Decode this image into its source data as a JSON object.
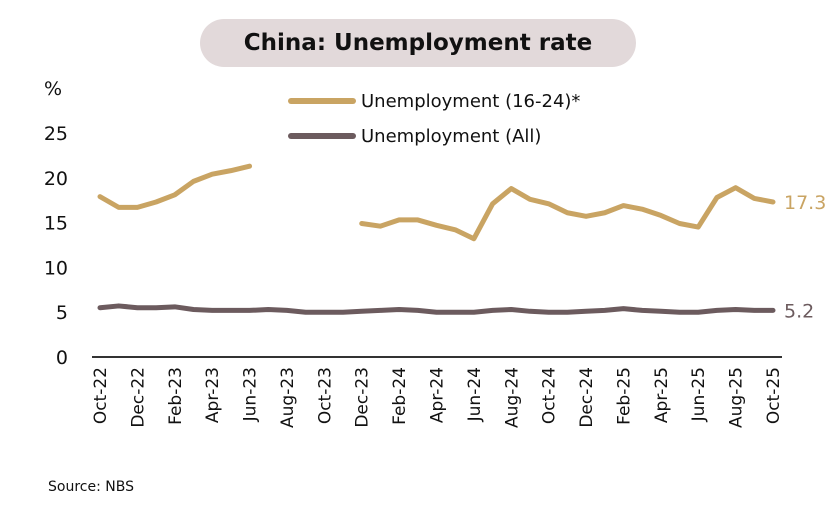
{
  "title": "China: Unemployment rate",
  "source": "Source: NBS",
  "colors": {
    "youth": "#c9a463",
    "all": "#6c5b5e",
    "title_bg": "#e2d9da"
  },
  "chart_data": {
    "type": "line",
    "title": "China: Unemployment rate",
    "xlabel": "",
    "ylabel": "%",
    "ylim": [
      0,
      25
    ],
    "yticks": [
      0,
      5,
      10,
      15,
      20,
      25
    ],
    "grid": false,
    "legend_position": "top-center",
    "x": [
      "Oct-22",
      "Nov-22",
      "Dec-22",
      "Jan-23",
      "Feb-23",
      "Mar-23",
      "Apr-23",
      "May-23",
      "Jun-23",
      "Jul-23",
      "Aug-23",
      "Sep-23",
      "Oct-23",
      "Nov-23",
      "Dec-23",
      "Jan-24",
      "Feb-24",
      "Mar-24",
      "Apr-24",
      "May-24",
      "Jun-24",
      "Jul-24",
      "Aug-24",
      "Sep-24",
      "Oct-24",
      "Nov-24",
      "Dec-24",
      "Jan-25",
      "Feb-25",
      "Mar-25",
      "Apr-25",
      "May-25",
      "Jun-25",
      "Jul-25",
      "Aug-25",
      "Sep-25",
      "Oct-25"
    ],
    "xtick_labels": [
      "Oct-22",
      "Dec-22",
      "Feb-23",
      "Apr-23",
      "Jun-23",
      "Aug-23",
      "Oct-23",
      "Dec-23",
      "Feb-24",
      "Apr-24",
      "Jun-24",
      "Aug-24",
      "Oct-24",
      "Dec-24",
      "Feb-25",
      "Apr-25",
      "Jun-25",
      "Aug-25",
      "Oct-25"
    ],
    "series": [
      {
        "name": "Unemployment (16-24)*",
        "color": "#c9a463",
        "values": [
          17.9,
          16.7,
          16.7,
          17.3,
          18.1,
          19.6,
          20.4,
          20.8,
          21.3,
          null,
          null,
          null,
          null,
          null,
          14.9,
          14.6,
          15.3,
          15.3,
          14.7,
          14.2,
          13.2,
          17.1,
          18.8,
          17.6,
          17.1,
          16.1,
          15.7,
          16.1,
          16.9,
          16.5,
          15.8,
          14.9,
          14.5,
          17.8,
          18.9,
          17.7,
          17.3
        ],
        "end_label": "17.3"
      },
      {
        "name": "Unemployment (All)",
        "color": "#6c5b5e",
        "values": [
          5.5,
          5.7,
          5.5,
          5.5,
          5.6,
          5.3,
          5.2,
          5.2,
          5.2,
          5.3,
          5.2,
          5.0,
          5.0,
          5.0,
          5.1,
          5.2,
          5.3,
          5.2,
          5.0,
          5.0,
          5.0,
          5.2,
          5.3,
          5.1,
          5.0,
          5.0,
          5.1,
          5.2,
          5.4,
          5.2,
          5.1,
          5.0,
          5.0,
          5.2,
          5.3,
          5.2,
          5.2
        ],
        "end_label": "5.2"
      }
    ]
  }
}
